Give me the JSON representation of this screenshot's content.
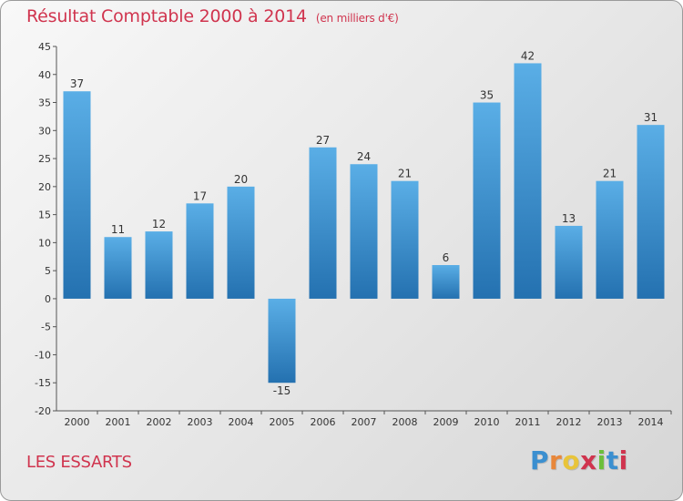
{
  "header": {
    "title": "Résultat Comptable 2000 à 2014",
    "subtitle": "(en milliers d'€)"
  },
  "footer": {
    "commune": "LES ESSARTS",
    "logo_text": "Proxiti"
  },
  "colors": {
    "title": "#d0344e",
    "bar_top": "#5aaee6",
    "bar_bottom": "#2471b0",
    "logo": [
      "#3a8fd0",
      "#e8873a",
      "#e8c43a",
      "#d0344e",
      "#6bbf3a",
      "#3a8fd0",
      "#d0344e"
    ]
  },
  "chart_data": {
    "type": "bar",
    "categories": [
      "2000",
      "2001",
      "2002",
      "2003",
      "2004",
      "2005",
      "2006",
      "2007",
      "2008",
      "2009",
      "2010",
      "2011",
      "2012",
      "2013",
      "2014"
    ],
    "values": [
      37,
      11,
      12,
      17,
      20,
      -15,
      27,
      24,
      21,
      6,
      35,
      42,
      13,
      21,
      31
    ],
    "data_labels": [
      "37",
      "11",
      "12",
      "17",
      "20",
      "-15",
      "27",
      "24",
      "21",
      "6",
      "35",
      "42",
      "13",
      "21",
      "31"
    ],
    "ylim": [
      -20,
      45
    ],
    "yticks": [
      "-20",
      "-15",
      "-10",
      "-5",
      "0",
      "5",
      "10",
      "15",
      "20",
      "25",
      "30",
      "35",
      "40",
      "45"
    ],
    "xlabel": "",
    "ylabel": "",
    "grid": false,
    "legend": "none"
  }
}
